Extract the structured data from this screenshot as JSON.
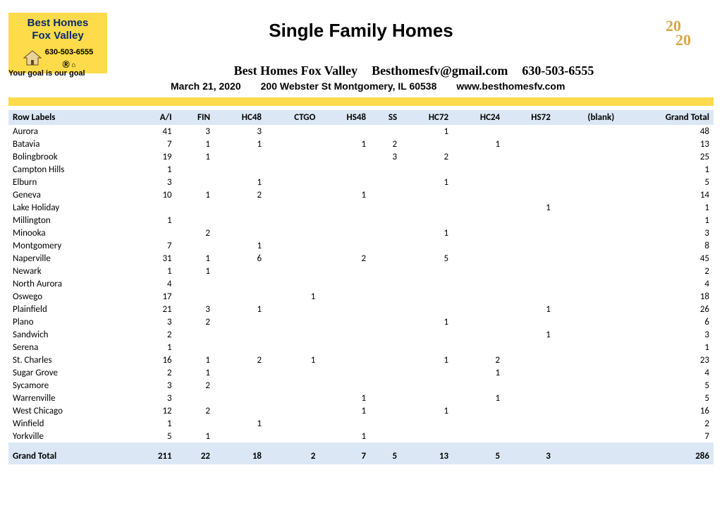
{
  "logo": {
    "line1": "Best Homes",
    "line2": "Fox Valley",
    "phone": "630-503-6555",
    "tagline": "Your goal is our goal"
  },
  "title": "Single Family Homes",
  "header": {
    "brand": "Best Homes Fox Valley",
    "email": "Besthomesfv@gmail.com",
    "phone": "630-503-6555",
    "date": "March 21, 2020",
    "address": "200 Webster St Montgomery, IL 60538",
    "site": "www.besthomesfv.com"
  },
  "year_badge": "2020",
  "colors": {
    "yellow": "#fddb4a",
    "header_row": "#dbe7f5",
    "logo_text": "#0a2a6a"
  },
  "table": {
    "columns": [
      "Row Labels",
      "A/I",
      "FIN",
      "HC48",
      "CTGO",
      "HS48",
      "SS",
      "HC72",
      "HC24",
      "HS72",
      "(blank)",
      "Grand Total"
    ],
    "col_align": [
      "left",
      "right",
      "right",
      "right",
      "right",
      "right",
      "right",
      "right",
      "right",
      "right",
      "right",
      "right"
    ],
    "rows": [
      [
        "Aurora",
        "41",
        "3",
        "3",
        "",
        "",
        "",
        "1",
        "",
        "",
        "",
        "48"
      ],
      [
        "Batavia",
        "7",
        "1",
        "1",
        "",
        "1",
        "2",
        "",
        "1",
        "",
        "",
        "13"
      ],
      [
        "Bolingbrook",
        "19",
        "1",
        "",
        "",
        "",
        "3",
        "2",
        "",
        "",
        "",
        "25"
      ],
      [
        "Campton Hills",
        "1",
        "",
        "",
        "",
        "",
        "",
        "",
        "",
        "",
        "",
        "1"
      ],
      [
        "Elburn",
        "3",
        "",
        "1",
        "",
        "",
        "",
        "1",
        "",
        "",
        "",
        "5"
      ],
      [
        "Geneva",
        "10",
        "1",
        "2",
        "",
        "1",
        "",
        "",
        "",
        "",
        "",
        "14"
      ],
      [
        "Lake Holiday",
        "",
        "",
        "",
        "",
        "",
        "",
        "",
        "",
        "1",
        "",
        "1"
      ],
      [
        "Millington",
        "1",
        "",
        "",
        "",
        "",
        "",
        "",
        "",
        "",
        "",
        "1"
      ],
      [
        "Minooka",
        "",
        "2",
        "",
        "",
        "",
        "",
        "1",
        "",
        "",
        "",
        "3"
      ],
      [
        "Montgomery",
        "7",
        "",
        "1",
        "",
        "",
        "",
        "",
        "",
        "",
        "",
        "8"
      ],
      [
        "Naperville",
        "31",
        "1",
        "6",
        "",
        "2",
        "",
        "5",
        "",
        "",
        "",
        "45"
      ],
      [
        "Newark",
        "1",
        "1",
        "",
        "",
        "",
        "",
        "",
        "",
        "",
        "",
        "2"
      ],
      [
        "North Aurora",
        "4",
        "",
        "",
        "",
        "",
        "",
        "",
        "",
        "",
        "",
        "4"
      ],
      [
        "Oswego",
        "17",
        "",
        "",
        "1",
        "",
        "",
        "",
        "",
        "",
        "",
        "18"
      ],
      [
        "Plainfield",
        "21",
        "3",
        "1",
        "",
        "",
        "",
        "",
        "",
        "1",
        "",
        "26"
      ],
      [
        "Plano",
        "3",
        "2",
        "",
        "",
        "",
        "",
        "1",
        "",
        "",
        "",
        "6"
      ],
      [
        "Sandwich",
        "2",
        "",
        "",
        "",
        "",
        "",
        "",
        "",
        "1",
        "",
        "3"
      ],
      [
        "Serena",
        "1",
        "",
        "",
        "",
        "",
        "",
        "",
        "",
        "",
        "",
        "1"
      ],
      [
        "St. Charles",
        "16",
        "1",
        "2",
        "1",
        "",
        "",
        "1",
        "2",
        "",
        "",
        "23"
      ],
      [
        "Sugar Grove",
        "2",
        "1",
        "",
        "",
        "",
        "",
        "",
        "1",
        "",
        "",
        "4"
      ],
      [
        "Sycamore",
        "3",
        "2",
        "",
        "",
        "",
        "",
        "",
        "",
        "",
        "",
        "5"
      ],
      [
        "Warrenville",
        "3",
        "",
        "",
        "",
        "1",
        "",
        "",
        "1",
        "",
        "",
        "5"
      ],
      [
        "West Chicago",
        "12",
        "2",
        "",
        "",
        "1",
        "",
        "1",
        "",
        "",
        "",
        "16"
      ],
      [
        "Winfield",
        "1",
        "",
        "1",
        "",
        "",
        "",
        "",
        "",
        "",
        "",
        "2"
      ],
      [
        "Yorkville",
        "5",
        "1",
        "",
        "",
        "1",
        "",
        "",
        "",
        "",
        "",
        "7"
      ]
    ],
    "total": [
      "Grand Total",
      "211",
      "22",
      "18",
      "2",
      "7",
      "5",
      "13",
      "5",
      "3",
      "",
      "286"
    ]
  }
}
